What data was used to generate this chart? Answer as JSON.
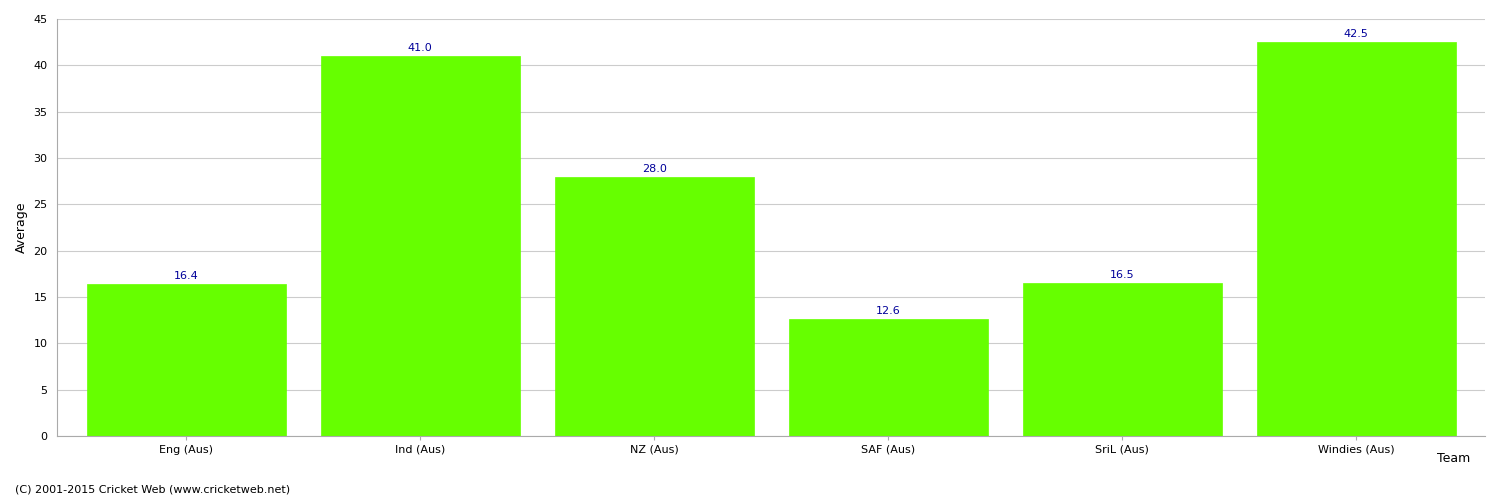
{
  "categories": [
    "Eng (Aus)",
    "Ind (Aus)",
    "NZ (Aus)",
    "SAF (Aus)",
    "SriL (Aus)",
    "Windies (Aus)"
  ],
  "values": [
    16.4,
    41.0,
    28.0,
    12.6,
    16.5,
    42.5
  ],
  "bar_color": "#66ff00",
  "bar_edge_color": "#66ff00",
  "label_color": "#000099",
  "ylabel": "Average",
  "xlabel": "Team",
  "ylim": [
    0,
    45
  ],
  "yticks": [
    0,
    5,
    10,
    15,
    20,
    25,
    30,
    35,
    40,
    45
  ],
  "grid_color": "#cccccc",
  "background_color": "#ffffff",
  "fig_width": 15.0,
  "fig_height": 5.0,
  "label_fontsize": 8,
  "axis_fontsize": 9,
  "tick_fontsize": 8,
  "footer_text": "(C) 2001-2015 Cricket Web (www.cricketweb.net)",
  "footer_fontsize": 8
}
